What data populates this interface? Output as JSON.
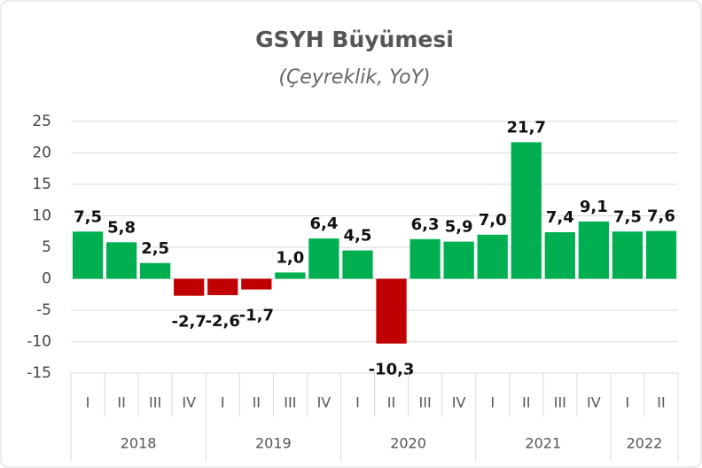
{
  "chart_data": {
    "type": "bar",
    "title": "GSYH Büyümesi",
    "subtitle": "(Çeyreklik, YoY)",
    "groups": [
      {
        "name": "2018",
        "categories": [
          "I",
          "II",
          "III",
          "IV"
        ]
      },
      {
        "name": "2019",
        "categories": [
          "I",
          "II",
          "III",
          "IV"
        ]
      },
      {
        "name": "2020",
        "categories": [
          "I",
          "II",
          "III",
          "IV"
        ]
      },
      {
        "name": "2021",
        "categories": [
          "I",
          "II",
          "III",
          "IV"
        ]
      },
      {
        "name": "2022",
        "categories": [
          "I",
          "II"
        ]
      }
    ],
    "values": [
      7.5,
      5.8,
      2.5,
      -2.7,
      -2.6,
      -1.7,
      1.0,
      6.4,
      4.5,
      -10.3,
      6.3,
      5.9,
      7.0,
      21.7,
      7.4,
      9.1,
      7.5,
      7.6
    ],
    "value_labels": [
      "7,5",
      "5,8",
      "2,5",
      "-2,7",
      "-2,6",
      "-1,7",
      "1,0",
      "6,4",
      "4,5",
      "-10,3",
      "6,3",
      "5,9",
      "7,0",
      "21,7",
      "7,4",
      "9,1",
      "7,5",
      "7,6"
    ],
    "positive_color": "#00b050",
    "negative_color": "#c00000",
    "ylim": [
      -15,
      25
    ],
    "yticks": [
      -15,
      -10,
      -5,
      0,
      5,
      10,
      15,
      20,
      25
    ],
    "grid": true
  }
}
